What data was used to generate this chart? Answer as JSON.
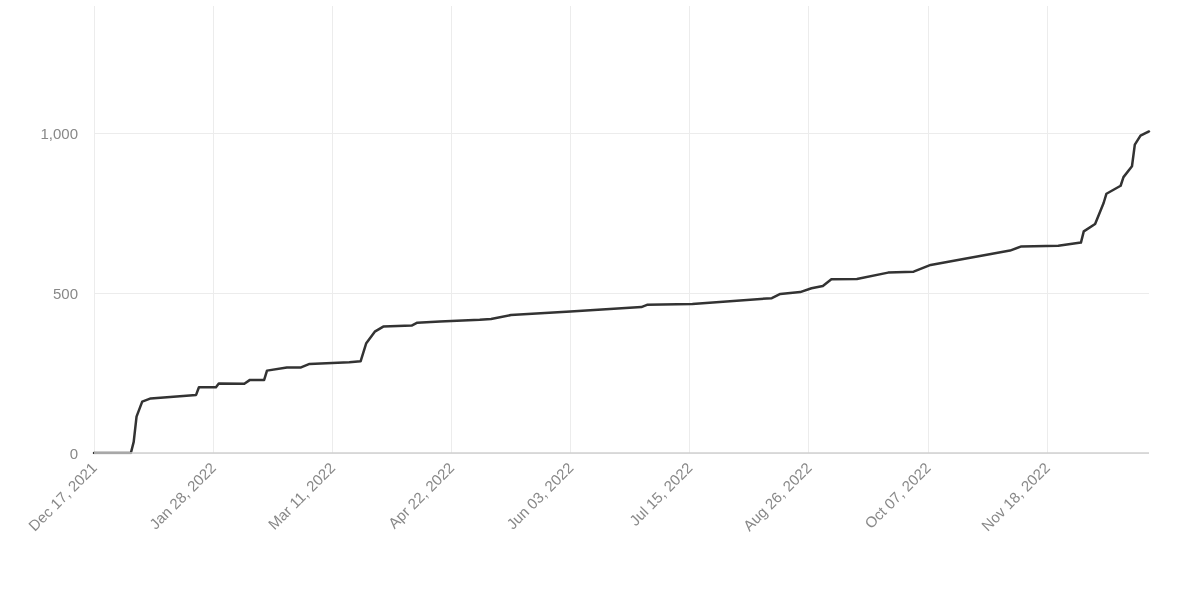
{
  "chart_data": {
    "type": "line",
    "x": [
      "2021-12-17",
      "2021-12-30",
      "2021-12-31",
      "2022-01-01",
      "2022-01-03",
      "2022-01-06",
      "2022-01-22",
      "2022-01-23",
      "2022-01-29",
      "2022-01-30",
      "2022-02-08",
      "2022-02-10",
      "2022-02-15",
      "2022-02-16",
      "2022-02-23",
      "2022-02-28",
      "2022-03-03",
      "2022-03-17",
      "2022-03-21",
      "2022-03-23",
      "2022-03-26",
      "2022-03-29",
      "2022-04-08",
      "2022-04-10",
      "2022-04-18",
      "2022-05-02",
      "2022-05-06",
      "2022-05-13",
      "2022-06-03",
      "2022-06-28",
      "2022-06-30",
      "2022-07-16",
      "2022-08-13",
      "2022-08-16",
      "2022-08-23",
      "2022-08-27",
      "2022-08-31",
      "2022-09-03",
      "2022-09-12",
      "2022-09-23",
      "2022-10-02",
      "2022-10-08",
      "2022-10-21",
      "2022-11-05",
      "2022-11-09",
      "2022-11-22",
      "2022-11-30",
      "2022-12-01",
      "2022-12-05",
      "2022-12-08",
      "2022-12-09",
      "2022-12-14",
      "2022-12-15",
      "2022-12-18",
      "2022-12-19",
      "2022-12-21",
      "2022-12-24"
    ],
    "series": [
      {
        "color": "#333333",
        "values": [
          0,
          0,
          35,
          114,
          161,
          171,
          182,
          206,
          206,
          218,
          217,
          229,
          229,
          258,
          268,
          268,
          279,
          284,
          287,
          344,
          380,
          396,
          399,
          408,
          412,
          417,
          420,
          432,
          443,
          457,
          464,
          467,
          485,
          498,
          504,
          516,
          523,
          544,
          545,
          565,
          568,
          589,
          610,
          634,
          647,
          649,
          659,
          694,
          717,
          783,
          812,
          837,
          864,
          898,
          966,
          994,
          1007
        ]
      }
    ],
    "xlim": [
      "2021-12-17",
      "2022-12-24"
    ],
    "xticks": [
      {
        "value": "2021-12-17",
        "label": "Dec 17, 2021"
      },
      {
        "value": "2022-01-28",
        "label": "Jan 28, 2022"
      },
      {
        "value": "2022-03-11",
        "label": "Mar 11, 2022"
      },
      {
        "value": "2022-04-22",
        "label": "Apr 22, 2022"
      },
      {
        "value": "2022-06-03",
        "label": "Jun 03, 2022"
      },
      {
        "value": "2022-07-15",
        "label": "Jul 15, 2022"
      },
      {
        "value": "2022-08-26",
        "label": "Aug 26, 2022"
      },
      {
        "value": "2022-10-07",
        "label": "Oct 07, 2022"
      },
      {
        "value": "2022-11-18",
        "label": "Nov 18, 2022"
      }
    ],
    "ylim": [
      0,
      1400
    ],
    "yticks": [
      0,
      500,
      {
        "value": 1000,
        "label": "1,000"
      }
    ],
    "grid": true,
    "marker": "none",
    "line_style": "solid"
  }
}
